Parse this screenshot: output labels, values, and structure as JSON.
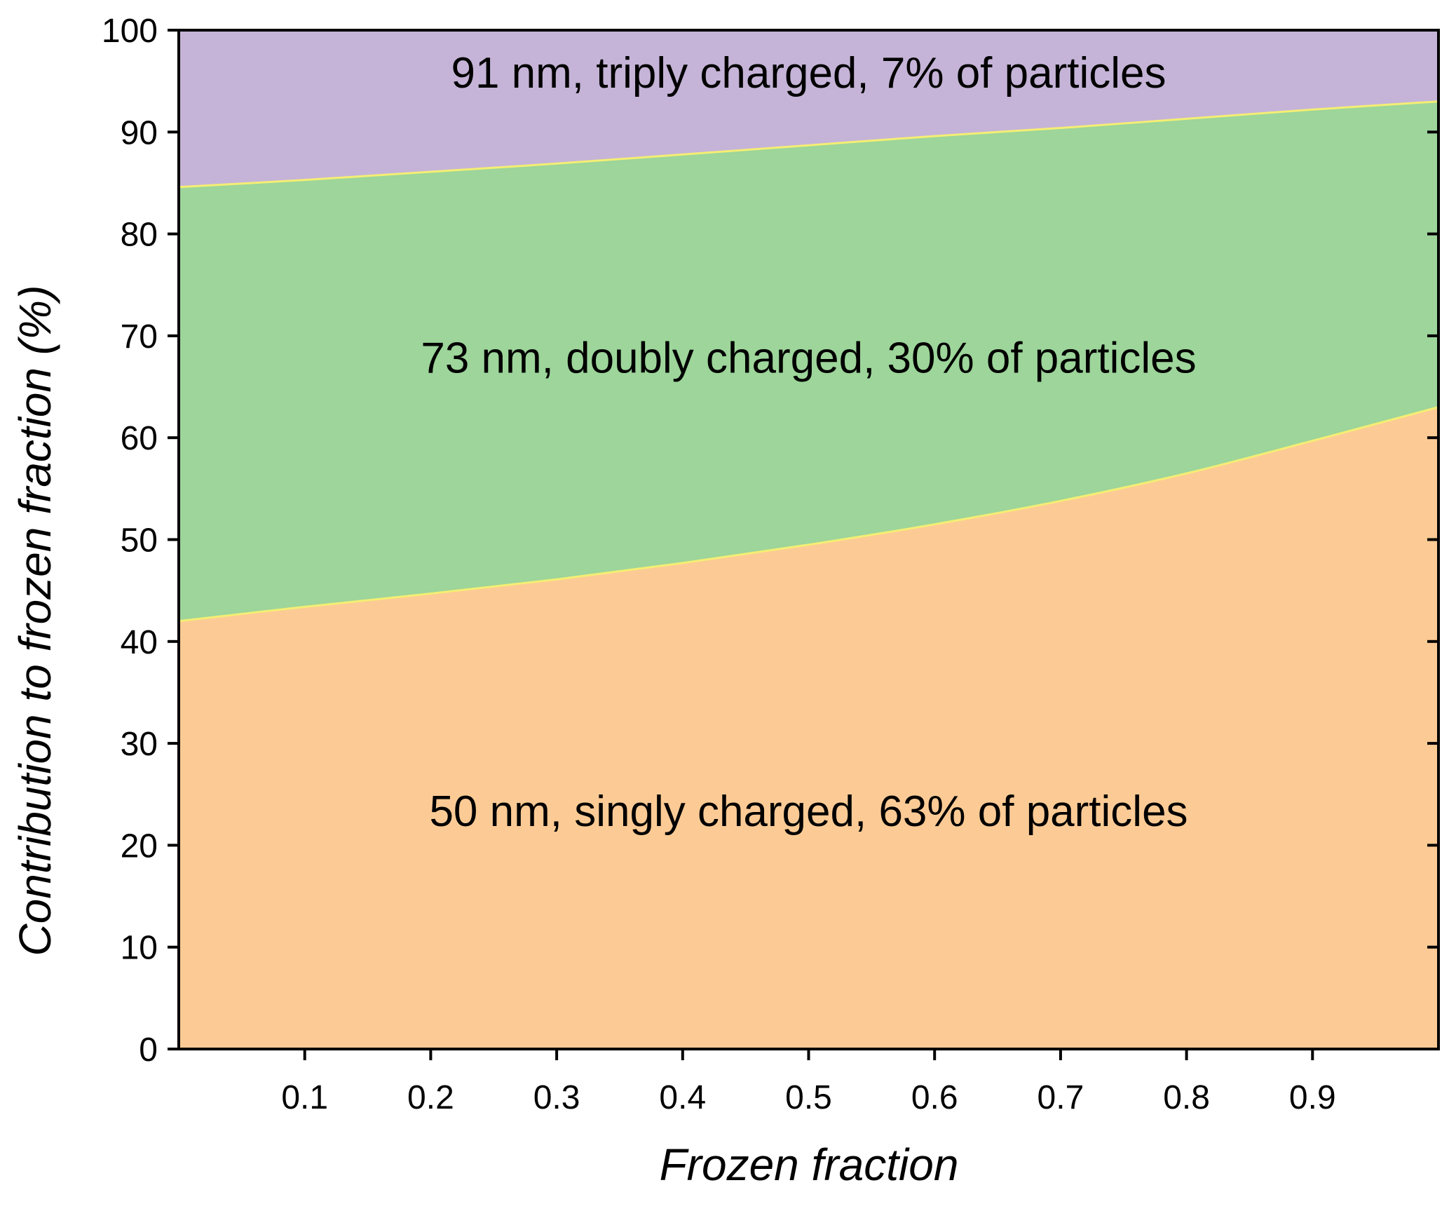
{
  "chart_data": {
    "type": "area",
    "stacked": true,
    "xlabel": "Frozen fraction",
    "ylabel": "Contribution to frozen fraction (%)",
    "xlim": [
      0.0,
      1.0
    ],
    "ylim": [
      0,
      100
    ],
    "x_ticks": [
      0.1,
      0.2,
      0.3,
      0.4,
      0.5,
      0.6,
      0.7,
      0.8,
      0.9
    ],
    "x_tick_labels": [
      "0.1",
      "0.2",
      "0.3",
      "0.4",
      "0.5",
      "0.6",
      "0.7",
      "0.8",
      "0.9"
    ],
    "y_ticks": [
      0,
      10,
      20,
      30,
      40,
      50,
      60,
      70,
      80,
      90,
      100
    ],
    "y_tick_labels": [
      "0",
      "10",
      "20",
      "30",
      "40",
      "50",
      "60",
      "70",
      "80",
      "90",
      "100"
    ],
    "grid": false,
    "legend": "none",
    "x": [
      0.0,
      0.1,
      0.2,
      0.3,
      0.4,
      0.5,
      0.6,
      0.7,
      0.8,
      0.9,
      1.0
    ],
    "boundaries": {
      "singly_upper": [
        42.0,
        43.4,
        44.7,
        46.1,
        47.7,
        49.5,
        51.5,
        53.8,
        56.5,
        59.7,
        63.0
      ],
      "doubly_upper": [
        84.6,
        85.3,
        86.1,
        86.9,
        87.8,
        88.7,
        89.6,
        90.4,
        91.3,
        92.2,
        93.0
      ]
    },
    "series": [
      {
        "name": "50 nm, singly charged, 63% of particles",
        "color": "#fccb95",
        "lower": "zero",
        "upper": "singly_upper"
      },
      {
        "name": "73 nm, doubly charged, 30% of particles",
        "color": "#9dd59a",
        "lower": "singly_upper",
        "upper": "doubly_upper"
      },
      {
        "name": "91 nm, triply charged, 7% of particles",
        "color": "#c5b4d7",
        "lower": "doubly_upper",
        "upper": "hundred"
      }
    ],
    "annotations": [
      {
        "text": "91 nm, triply charged, 7% of particles",
        "x": 0.5,
        "y": 95.5
      },
      {
        "text": "73 nm, doubly charged, 30% of particles",
        "x": 0.5,
        "y": 67.5
      },
      {
        "text": "50 nm, singly charged, 63% of particles",
        "x": 0.5,
        "y": 23.0
      }
    ],
    "boundary_line_color": "#f4ee74"
  }
}
